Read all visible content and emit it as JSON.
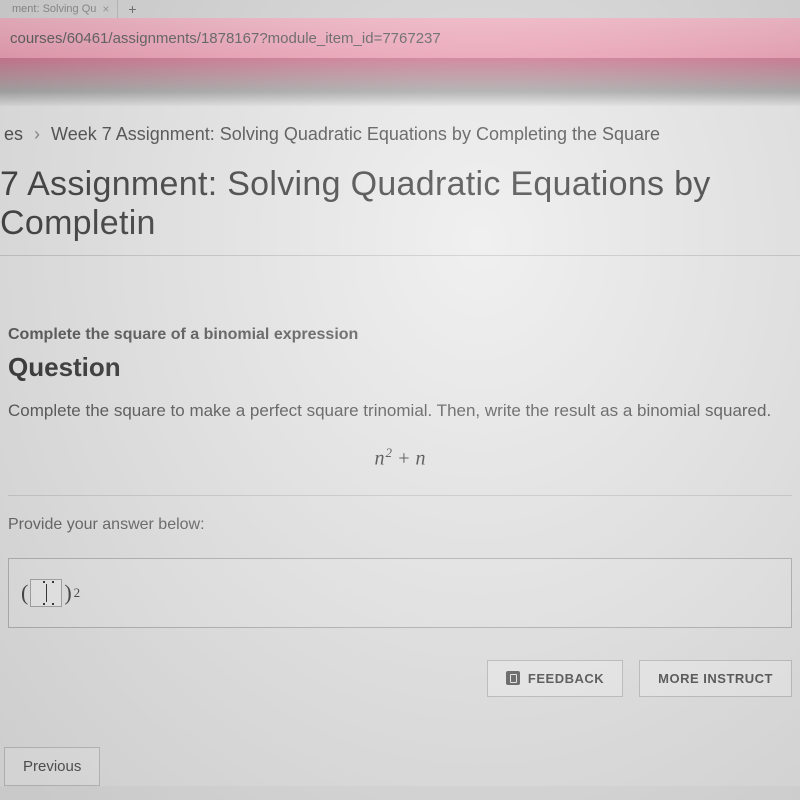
{
  "browser": {
    "tab_title_fragment": "ment: Solving Qu",
    "url": "courses/60461/assignments/1878167?module_item_id=7767237"
  },
  "breadcrumb": {
    "prefix": "es",
    "current": "Week 7 Assignment: Solving Quadratic Equations by Completing the Square"
  },
  "page": {
    "title": "7 Assignment: Solving Quadratic Equations by Completin"
  },
  "lesson": {
    "subtitle": "Complete the square of a binomial expression",
    "question_heading": "Question",
    "prompt": "Complete the square to make a perfect square trinomial. Then, write the result as a binomial squared.",
    "expression_base": "n",
    "expression_exp": "2",
    "expression_tail": " + n",
    "provide_label": "Provide your answer below:",
    "answer_exponent": "2"
  },
  "buttons": {
    "feedback": "FEEDBACK",
    "more_instruction": "MORE INSTRUCT",
    "previous": "Previous"
  },
  "colors": {
    "url_bar_top": "#f5b5c5",
    "url_bar_bottom": "#f09fb5",
    "body_bg": "#ebebeb",
    "text_primary": "#3a3a3a",
    "text_secondary": "#555555",
    "border": "#c5c5c5"
  }
}
